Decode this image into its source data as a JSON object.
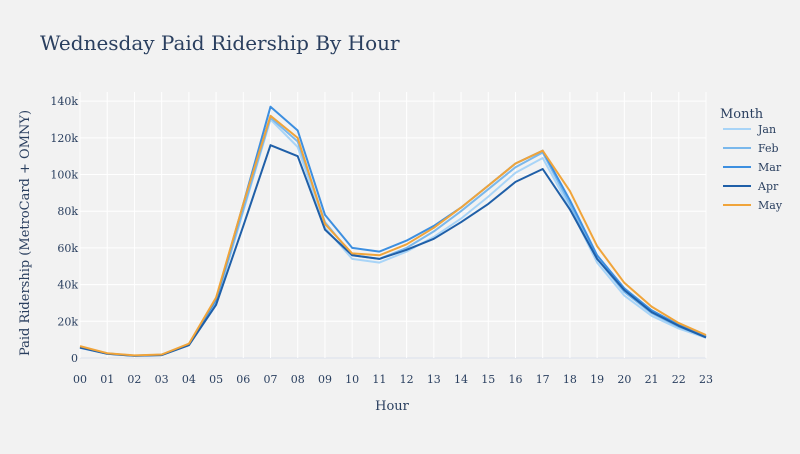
{
  "chart_data": {
    "type": "line",
    "title": "Wednesday Paid Ridership By Hour",
    "xlabel": "Hour",
    "ylabel": "Paid Ridership (MetroCard + OMNY)",
    "x": [
      "00",
      "01",
      "02",
      "03",
      "04",
      "05",
      "06",
      "07",
      "08",
      "09",
      "10",
      "11",
      "12",
      "13",
      "14",
      "15",
      "16",
      "17",
      "18",
      "19",
      "20",
      "21",
      "22",
      "23"
    ],
    "ylim": [
      0,
      145000
    ],
    "yticks": [
      0,
      20000,
      40000,
      60000,
      80000,
      100000,
      120000,
      140000
    ],
    "ytick_labels": [
      "0",
      "20k",
      "40k",
      "60k",
      "80k",
      "100k",
      "120k",
      "140k"
    ],
    "grid": true,
    "legend": {
      "title": "Month",
      "placement": "top-right"
    },
    "series": [
      {
        "name": "Jan",
        "color": "#a8d4f7",
        "values": [
          5500,
          2300,
          1200,
          1600,
          7000,
          30000,
          80000,
          130000,
          115000,
          71000,
          54000,
          52000,
          58000,
          66000,
          76000,
          88000,
          101000,
          109000,
          82000,
          52000,
          34000,
          23000,
          16000,
          11000
        ]
      },
      {
        "name": "Feb",
        "color": "#7ab8ec",
        "values": [
          5800,
          2400,
          1250,
          1700,
          7200,
          31000,
          81000,
          131000,
          118000,
          74000,
          56000,
          54000,
          60000,
          69000,
          80000,
          92000,
          104000,
          112000,
          84000,
          54000,
          36000,
          24500,
          17000,
          11500
        ]
      },
      {
        "name": "Mar",
        "color": "#3d8fe0",
        "values": [
          6000,
          2500,
          1300,
          1800,
          7500,
          32000,
          84000,
          137000,
          124000,
          78000,
          60000,
          58000,
          64000,
          72000,
          82000,
          94000,
          106000,
          113000,
          86000,
          56000,
          38000,
          26000,
          18000,
          12000
        ]
      },
      {
        "name": "Apr",
        "color": "#1f5fa8",
        "values": [
          5600,
          2300,
          1200,
          1600,
          7000,
          29000,
          72000,
          116000,
          110000,
          70000,
          56000,
          54000,
          59000,
          65000,
          74000,
          84000,
          96000,
          103000,
          81000,
          54000,
          37000,
          25000,
          17500,
          11200
        ]
      },
      {
        "name": "May",
        "color": "#f0a43a",
        "values": [
          6500,
          2600,
          1400,
          1900,
          7800,
          33000,
          84000,
          132000,
          120000,
          73000,
          57000,
          56000,
          62000,
          71000,
          82000,
          94000,
          106000,
          113000,
          91000,
          61000,
          41000,
          28000,
          19000,
          12500
        ]
      }
    ]
  }
}
